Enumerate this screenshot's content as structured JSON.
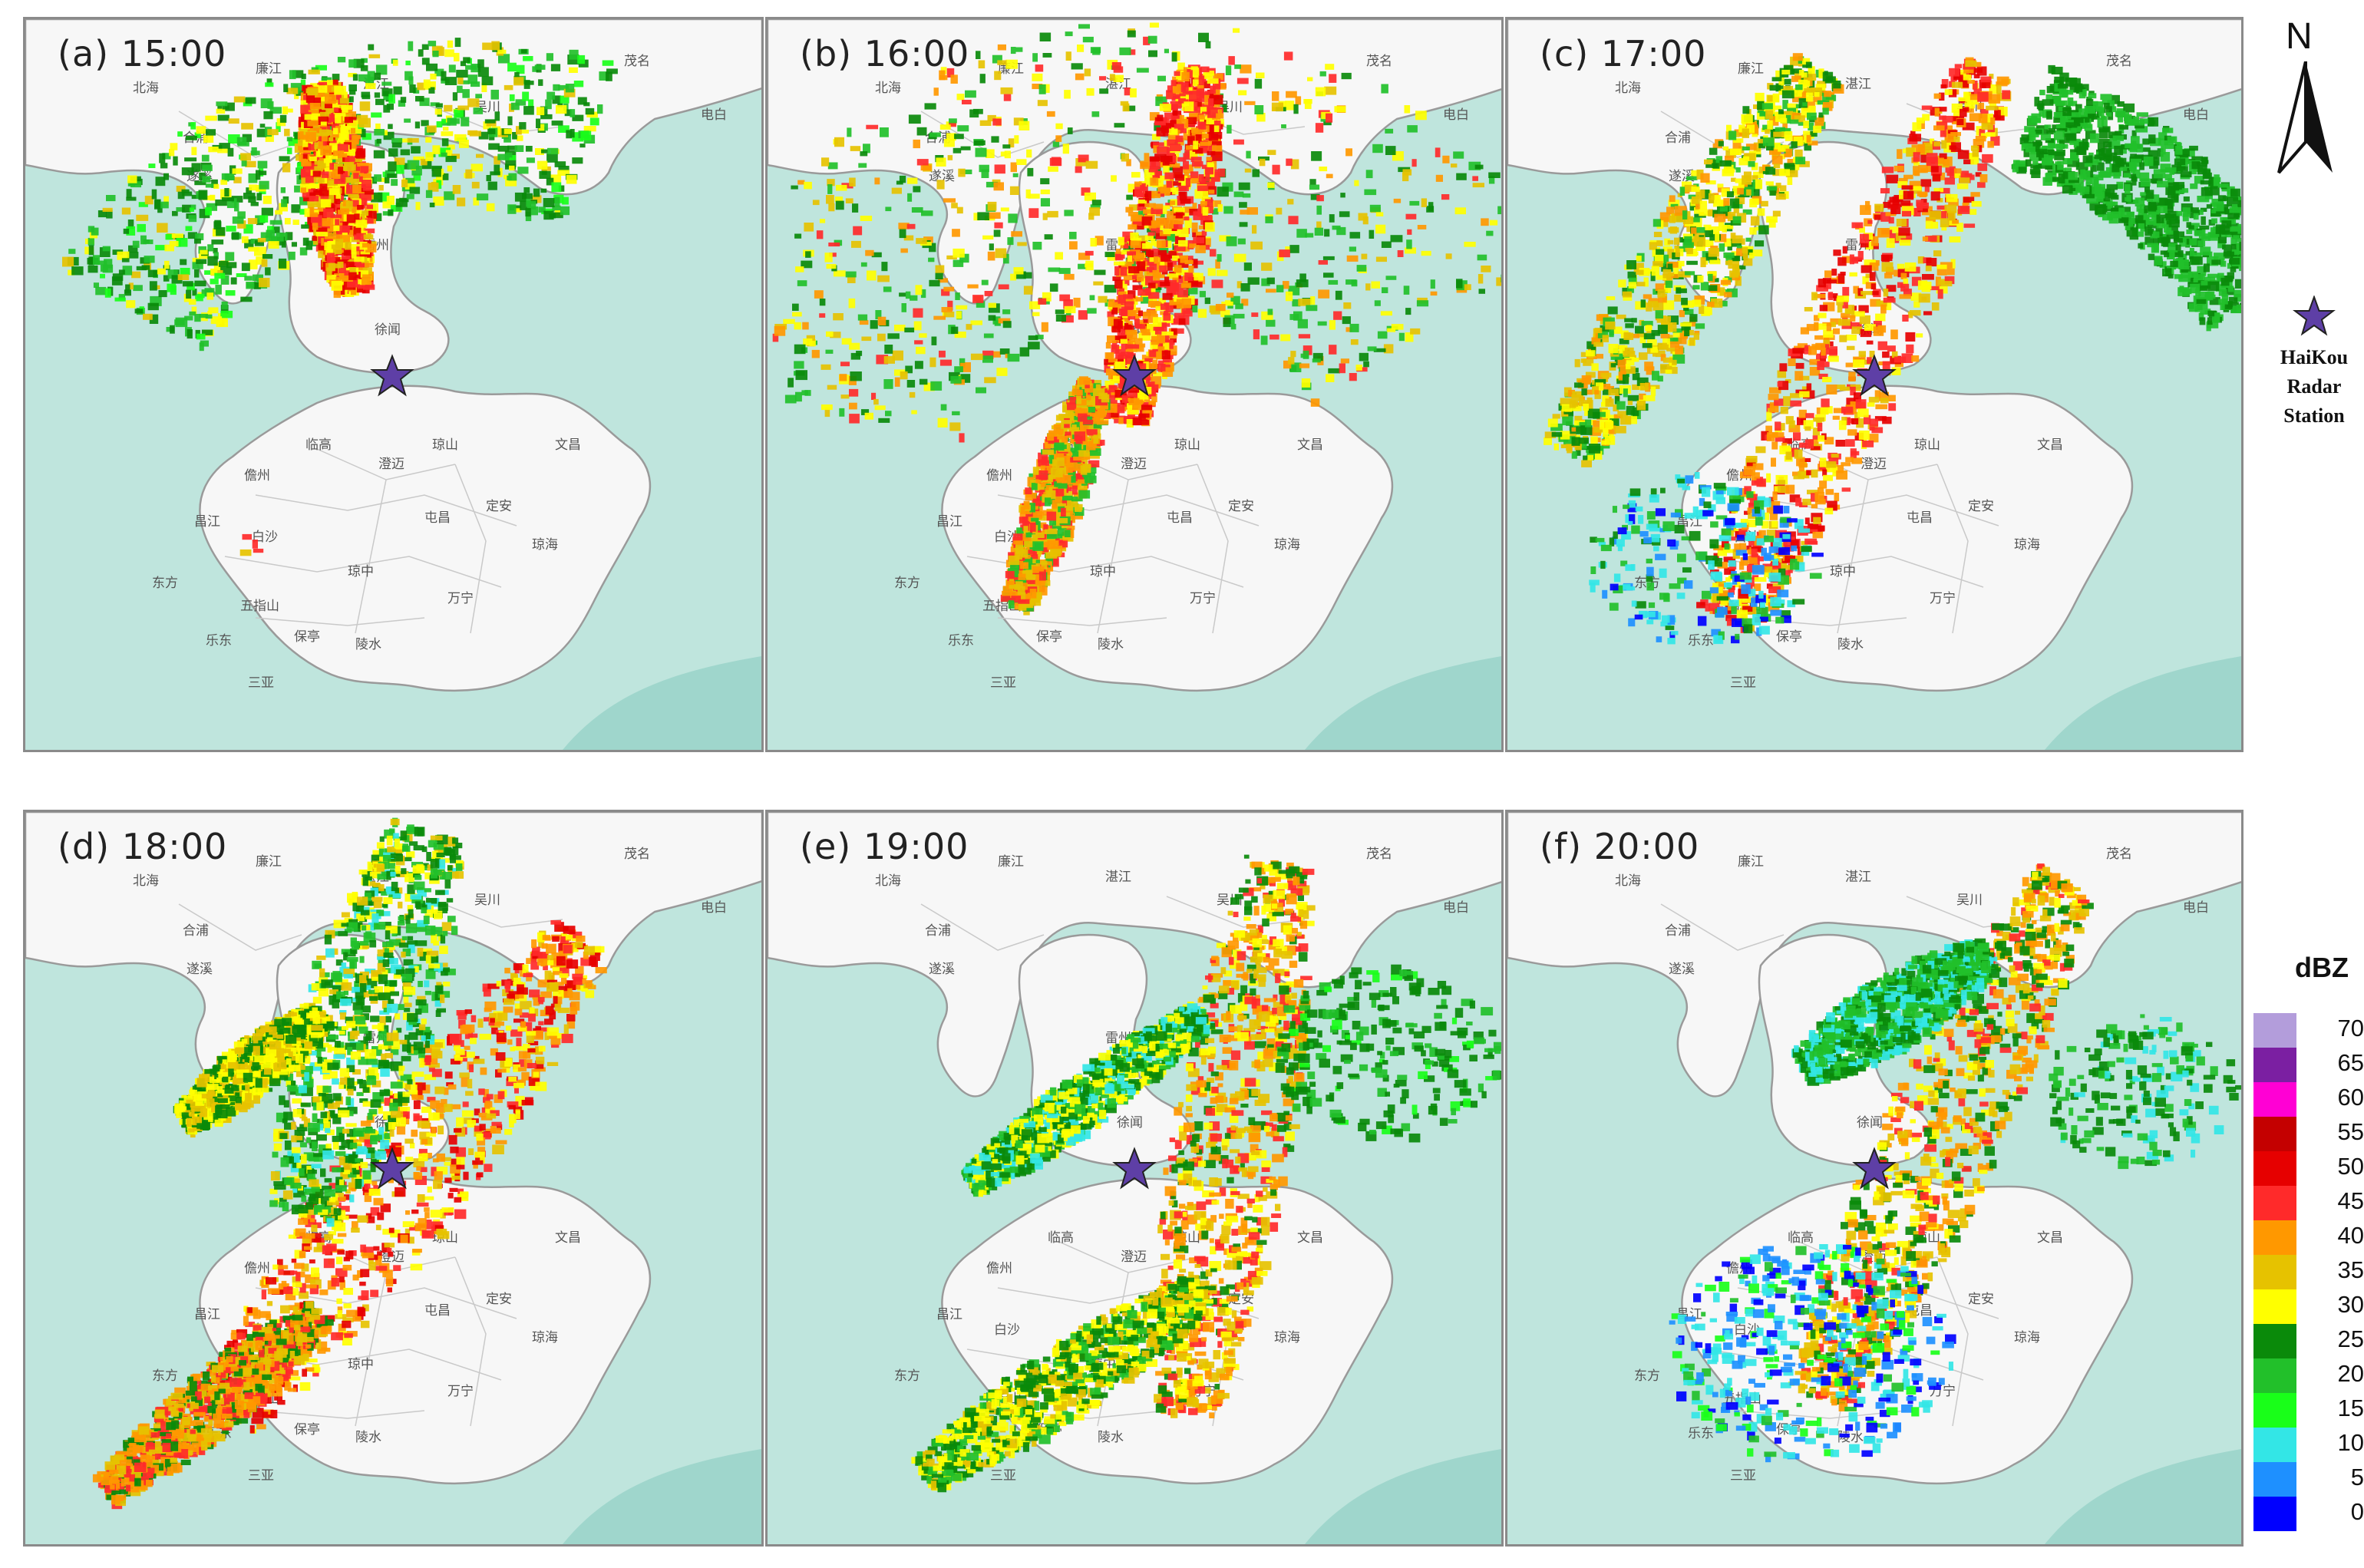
{
  "panels": [
    {
      "label": "(a)",
      "time": "15:00"
    },
    {
      "label": "(b)",
      "time": "16:00"
    },
    {
      "label": "(c)",
      "time": "17:00"
    },
    {
      "label": "(d)",
      "time": "18:00"
    },
    {
      "label": "(e)",
      "time": "19:00"
    },
    {
      "label": "(f)",
      "time": "20:00"
    }
  ],
  "north_label": "N",
  "station_legend": {
    "line1": "HaiKou",
    "line2": "Radar",
    "line3": "Station",
    "icon": "star-icon",
    "color": "#5e3fa6"
  },
  "place_names": [
    "湛江",
    "徐闻",
    "儋州",
    "临高",
    "澄迈",
    "琼山",
    "文昌",
    "定安",
    "屯昌",
    "琼海",
    "昌江",
    "白沙",
    "琼中",
    "东方",
    "乐东",
    "五指山",
    "万宁",
    "保亭",
    "陵水",
    "三亚",
    "雷州",
    "廉江",
    "北海",
    "合浦",
    "吴川",
    "茂名",
    "电白",
    "遂溪"
  ],
  "colorbar": {
    "unit": "dBZ",
    "levels": [
      {
        "value": "70",
        "color": "#b39ddb"
      },
      {
        "value": "65",
        "color": "#7b1fa2"
      },
      {
        "value": "60",
        "color": "#ff00d4"
      },
      {
        "value": "55",
        "color": "#c40000"
      },
      {
        "value": "50",
        "color": "#e60000"
      },
      {
        "value": "45",
        "color": "#ff2a2a"
      },
      {
        "value": "40",
        "color": "#ff9800"
      },
      {
        "value": "35",
        "color": "#e6c200"
      },
      {
        "value": "30",
        "color": "#ffff00"
      },
      {
        "value": "25",
        "color": "#0a8a0a"
      },
      {
        "value": "20",
        "color": "#22c02a"
      },
      {
        "value": "15",
        "color": "#19ff19"
      },
      {
        "value": "10",
        "color": "#33e6e6"
      },
      {
        "value": "5",
        "color": "#1e90ff"
      },
      {
        "value": "0",
        "color": "#0000ff"
      }
    ]
  }
}
